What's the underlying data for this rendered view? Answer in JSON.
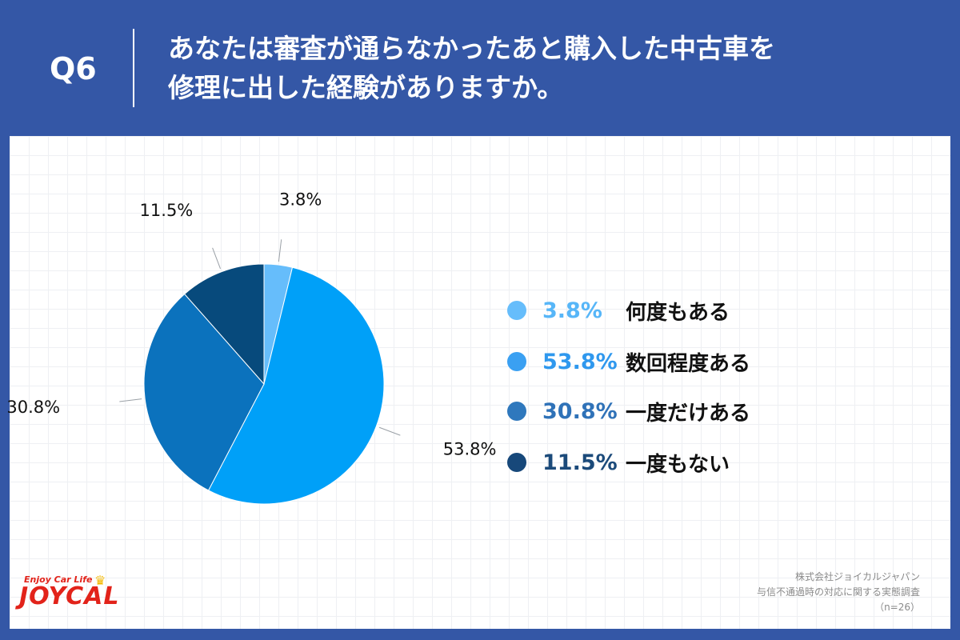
{
  "header": {
    "q_label": "Q6",
    "question_line1": "あなたは審査が通らなかったあと購入した中古車を",
    "question_line2": "修理に出した経験がありますか。"
  },
  "chart_data": {
    "type": "pie",
    "start": "12 o'clock, clockwise",
    "series": [
      {
        "value": 3.8,
        "label": "3.8%",
        "name": "何度もある",
        "color": "#66bdfb"
      },
      {
        "value": 53.8,
        "label": "53.8%",
        "name": "数回程度ある",
        "color": "#00a0f8"
      },
      {
        "value": 30.8,
        "label": "30.8%",
        "name": "一度だけある",
        "color": "#0b72bd"
      },
      {
        "value": 11.5,
        "label": "11.5%",
        "name": "一度もない",
        "color": "#074a7c"
      }
    ]
  },
  "legend": [
    {
      "value": "3.8%",
      "label": "何度もある",
      "dot_color": "#66bdfb",
      "text_color": "#57b6f8"
    },
    {
      "value": "53.8%",
      "label": "数回程度ある",
      "dot_color": "#3aa0f2",
      "text_color": "#2f98ee"
    },
    {
      "value": "30.8%",
      "label": "一度だけある",
      "dot_color": "#2f78bd",
      "text_color": "#2f72b8"
    },
    {
      "value": "11.5%",
      "label": "一度もない",
      "dot_color": "#17487a",
      "text_color": "#1b4a7a"
    }
  ],
  "footer": {
    "company": "株式会社ジョイカルジャパン",
    "survey": "与信不通過時の対応に関する実態調査",
    "n": "（n=26）"
  },
  "logo": {
    "tagline": "Enjoy Car Life",
    "wordmark": "JOYCAL",
    "color": "#e2231a",
    "icon": "crown-icon"
  }
}
